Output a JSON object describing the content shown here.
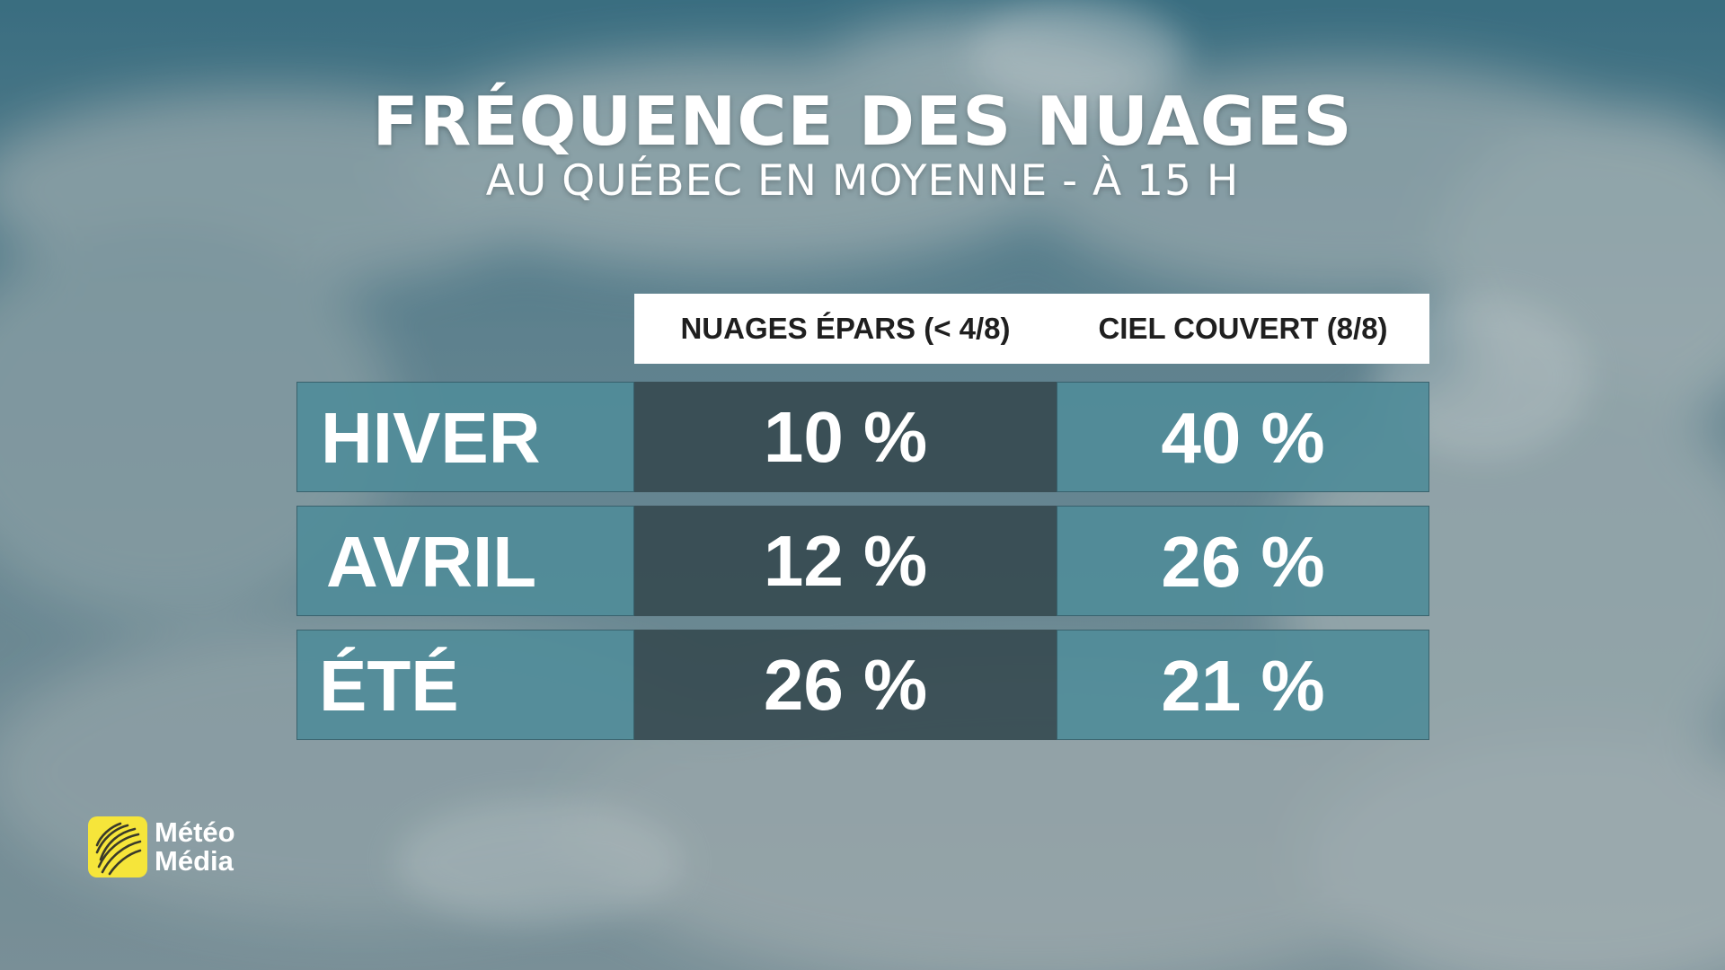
{
  "title": "FRÉQUENCE DES NUAGES",
  "subtitle": "AU QUÉBEC EN MOYENNE - À 15 H",
  "table": {
    "columns": [
      "NUAGES ÉPARS (< 4/8)",
      "CIEL COUVERT (8/8)"
    ],
    "rows": [
      {
        "label": "HIVER",
        "values": [
          "10 %",
          "40 %"
        ]
      },
      {
        "label": "AVRIL",
        "values": [
          "12 %",
          "26 %"
        ]
      },
      {
        "label": "ÉTÉ",
        "values": [
          "26 %",
          "21 %"
        ]
      }
    ]
  },
  "chart_data": {
    "type": "table",
    "title": "FRÉQUENCE DES NUAGES",
    "subtitle": "AU QUÉBEC EN MOYENNE - À 15 H",
    "columns": [
      "NUAGES ÉPARS (< 4/8)",
      "CIEL COUVERT (8/8)"
    ],
    "categories": [
      "HIVER",
      "AVRIL",
      "ÉTÉ"
    ],
    "series": [
      {
        "name": "NUAGES ÉPARS (< 4/8)",
        "values": [
          10,
          12,
          26
        ]
      },
      {
        "name": "CIEL COUVERT (8/8)",
        "values": [
          40,
          26,
          21
        ]
      }
    ],
    "unit": "%"
  },
  "logo": {
    "line1": "Météo",
    "line2": "Média"
  },
  "colors": {
    "label_cell": "#508c99",
    "dark_cell": "#374b52",
    "header_bg": "#ffffff",
    "logo_yellow": "#f6e53a"
  }
}
